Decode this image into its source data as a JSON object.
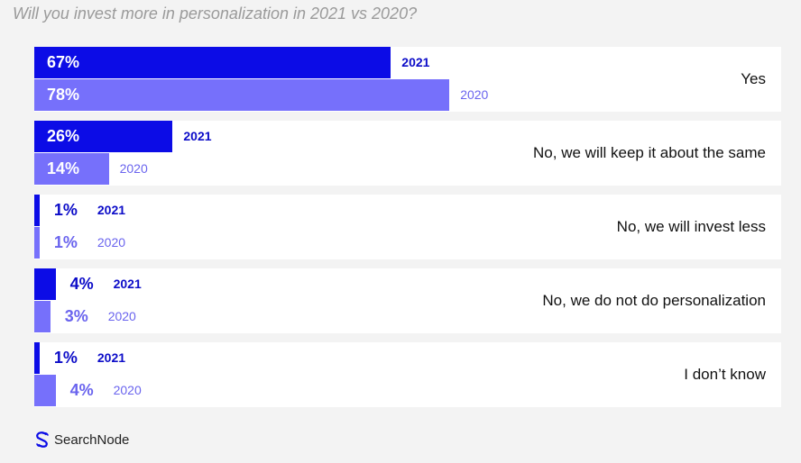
{
  "header": {
    "title": "Will you invest more in personalization in 2021 vs 2020?"
  },
  "brand": {
    "name": "SearchNode",
    "icon": "searchnode-logo-icon"
  },
  "colors": {
    "bar_2021": "#0c0ce6",
    "bar_2020": "#7670fb",
    "row_bg": "#ffffff",
    "page_bg": "#f3f3f3"
  },
  "chart_data": {
    "type": "bar",
    "orientation": "horizontal",
    "title": "Will you invest more in personalization in 2021 vs 2020?",
    "categories": [
      "Yes",
      "No, we will keep it about the same",
      "No, we will invest less",
      "No, we do not do personalization",
      "I don’t know"
    ],
    "series": [
      {
        "name": "2021",
        "values": [
          67,
          26,
          1,
          4,
          1
        ],
        "labels": [
          "67%",
          "26%",
          "1%",
          "4%",
          "1%"
        ]
      },
      {
        "name": "2020",
        "values": [
          78,
          14,
          1,
          3,
          4
        ],
        "labels": [
          "78%",
          "14%",
          "1%",
          "3%",
          "4%"
        ]
      }
    ],
    "xlim": [
      0,
      100
    ],
    "unit": "%",
    "grid": false,
    "legend": "none"
  }
}
